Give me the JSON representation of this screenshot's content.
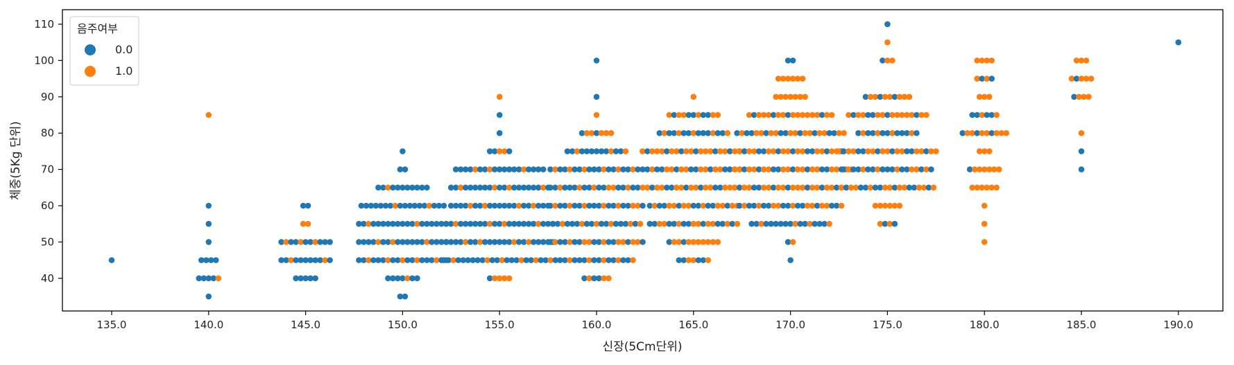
{
  "chart_data": {
    "type": "scatter",
    "subtype": "swarm",
    "title": "",
    "xlabel": "신장(5Cm단위)",
    "ylabel": "체중(5Kg 단위)",
    "x_categories": [
      "135.0",
      "140.0",
      "145.0",
      "150.0",
      "155.0",
      "160.0",
      "165.0",
      "170.0",
      "175.0",
      "180.0",
      "185.0",
      "190.0"
    ],
    "y_ticks": [
      "40",
      "50",
      "60",
      "70",
      "80",
      "90",
      "100",
      "110"
    ],
    "ylim": [
      31,
      114
    ],
    "grid": false,
    "legend": {
      "title": "음주여부",
      "placement": "top-left",
      "entries": [
        "0.0",
        "1.0"
      ]
    },
    "colors": {
      "0.0": "#1f77b4",
      "1.0": "#ff7f0e"
    },
    "counts_note": "each group: [weight, count of 0.0, count of 1.0]",
    "groups": [
      {
        "x": "135.0",
        "bins": [
          [
            45,
            1,
            0
          ]
        ]
      },
      {
        "x": "140.0",
        "bins": [
          [
            35,
            1,
            0
          ],
          [
            40,
            4,
            1
          ],
          [
            45,
            4,
            0
          ],
          [
            50,
            1,
            0
          ],
          [
            55,
            1,
            0
          ],
          [
            60,
            1,
            0
          ],
          [
            85,
            0,
            1
          ]
        ]
      },
      {
        "x": "145.0",
        "bins": [
          [
            40,
            5,
            0
          ],
          [
            45,
            9,
            2
          ],
          [
            50,
            8,
            3
          ],
          [
            55,
            0,
            2
          ],
          [
            60,
            2,
            0
          ]
        ]
      },
      {
        "x": "150.0",
        "bins": [
          [
            35,
            2,
            0
          ],
          [
            40,
            6,
            1
          ],
          [
            45,
            14,
            5
          ],
          [
            50,
            16,
            3
          ],
          [
            55,
            17,
            2
          ],
          [
            60,
            16,
            2
          ],
          [
            65,
            10,
            1
          ],
          [
            70,
            2,
            0
          ],
          [
            75,
            1,
            0
          ]
        ]
      },
      {
        "x": "155.0",
        "bins": [
          [
            40,
            1,
            4
          ],
          [
            45,
            18,
            6
          ],
          [
            50,
            19,
            4
          ],
          [
            55,
            18,
            5
          ],
          [
            60,
            17,
            4
          ],
          [
            65,
            17,
            4
          ],
          [
            70,
            16,
            3
          ],
          [
            75,
            3,
            2
          ],
          [
            80,
            1,
            0
          ],
          [
            85,
            1,
            0
          ],
          [
            90,
            0,
            1
          ]
        ]
      },
      {
        "x": "160.0",
        "bins": [
          [
            40,
            3,
            3
          ],
          [
            45,
            11,
            5
          ],
          [
            50,
            11,
            9
          ],
          [
            55,
            13,
            6
          ],
          [
            60,
            13,
            7
          ],
          [
            65,
            13,
            7
          ],
          [
            70,
            14,
            6
          ],
          [
            75,
            10,
            3
          ],
          [
            80,
            2,
            5
          ],
          [
            85,
            0,
            1
          ],
          [
            90,
            1,
            0
          ],
          [
            100,
            1,
            0
          ]
        ]
      },
      {
        "x": "165.0",
        "bins": [
          [
            45,
            4,
            3
          ],
          [
            50,
            2,
            9
          ],
          [
            55,
            10,
            9
          ],
          [
            60,
            9,
            10
          ],
          [
            65,
            7,
            13
          ],
          [
            70,
            9,
            11
          ],
          [
            75,
            6,
            16
          ],
          [
            80,
            10,
            5
          ],
          [
            85,
            5,
            6
          ],
          [
            90,
            0,
            1
          ]
        ]
      },
      {
        "x": "170.0",
        "bins": [
          [
            45,
            1,
            0
          ],
          [
            50,
            1,
            1
          ],
          [
            55,
            13,
            4
          ],
          [
            60,
            12,
            10
          ],
          [
            65,
            8,
            16
          ],
          [
            70,
            10,
            16
          ],
          [
            75,
            9,
            13
          ],
          [
            80,
            10,
            13
          ],
          [
            85,
            4,
            14
          ],
          [
            90,
            0,
            7
          ],
          [
            95,
            0,
            6
          ],
          [
            100,
            2,
            0
          ]
        ]
      },
      {
        "x": "175.0",
        "bins": [
          [
            55,
            2,
            2
          ],
          [
            60,
            0,
            6
          ],
          [
            65,
            9,
            11
          ],
          [
            70,
            12,
            7
          ],
          [
            75,
            8,
            13
          ],
          [
            80,
            9,
            4
          ],
          [
            85,
            5,
            12
          ],
          [
            90,
            3,
            7
          ],
          [
            100,
            1,
            2
          ],
          [
            105,
            0,
            1
          ],
          [
            110,
            1,
            0
          ]
        ]
      },
      {
        "x": "180.0",
        "bins": [
          [
            50,
            0,
            1
          ],
          [
            55,
            0,
            1
          ],
          [
            60,
            0,
            1
          ],
          [
            65,
            0,
            6
          ],
          [
            70,
            1,
            6
          ],
          [
            75,
            0,
            3
          ],
          [
            80,
            3,
            7
          ],
          [
            85,
            4,
            2
          ],
          [
            90,
            0,
            3
          ],
          [
            95,
            2,
            2
          ],
          [
            100,
            0,
            4
          ]
        ]
      },
      {
        "x": "185.0",
        "bins": [
          [
            70,
            1,
            0
          ],
          [
            75,
            1,
            0
          ],
          [
            80,
            0,
            1
          ],
          [
            90,
            1,
            3
          ],
          [
            95,
            1,
            4
          ],
          [
            100,
            0,
            3
          ]
        ]
      },
      {
        "x": "190.0",
        "bins": [
          [
            105,
            1,
            0
          ]
        ]
      }
    ]
  }
}
